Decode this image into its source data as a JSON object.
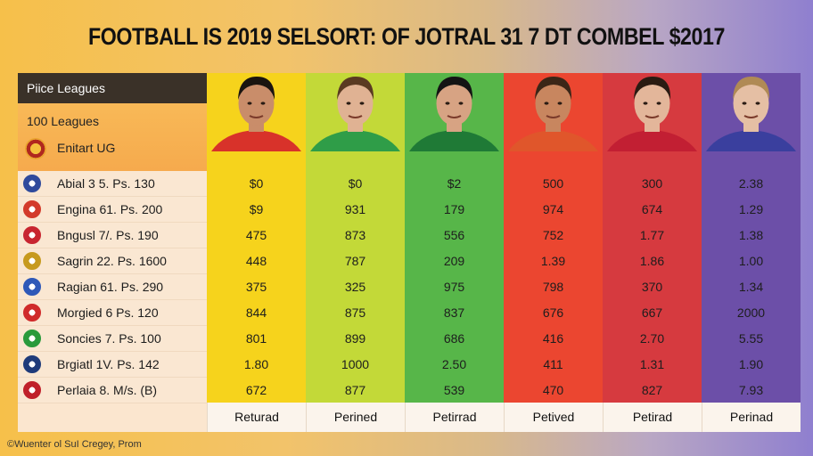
{
  "title": "FOOTBALL IS 2019 SELSORT: OF JOTRAL 31 7 DT COMBEL $2017",
  "left_panel": {
    "header": "Piice Leagues",
    "sub": "100 Leagues",
    "sub2": "Enitart UG"
  },
  "columns": [
    {
      "color": "#f6d31c",
      "footer": "Returad",
      "values": [
        "$0",
        "$9",
        "475",
        "448",
        "375",
        "844",
        "801",
        "1.80",
        "672"
      ]
    },
    {
      "color": "#c3d938",
      "footer": "Perined",
      "values": [
        "$0",
        "931",
        "873",
        "787",
        "325",
        "875",
        "899",
        "1000",
        "877"
      ]
    },
    {
      "color": "#57b649",
      "footer": "Petirrad",
      "values": [
        "$2",
        "179",
        "556",
        "209",
        "975",
        "837",
        "686",
        "2.50",
        "539"
      ]
    },
    {
      "color": "#eb4630",
      "footer": "Petived",
      "values": [
        "500",
        "974",
        "752",
        "1.39",
        "798",
        "676",
        "416",
        "411",
        "470"
      ]
    },
    {
      "color": "#d63a3f",
      "footer": "Petirad",
      "values": [
        "300",
        "674",
        "1.77",
        "1.86",
        "370",
        "667",
        "2.70",
        "1.31",
        "827"
      ]
    },
    {
      "color": "#6c4fa8",
      "footer": "Perinad",
      "values": [
        "2.38",
        "1.29",
        "1.38",
        "1.00",
        "1.34",
        "2000",
        "5.55",
        "1.90",
        "7.93"
      ]
    }
  ],
  "teams": [
    {
      "name": "Abial 3 5. Ps. 130",
      "icon": "crest-blue-icon",
      "color": "#2f4a9c"
    },
    {
      "name": "Engina 61. Ps. 200",
      "icon": "crest-multicolor-icon",
      "color": "#d33a2a"
    },
    {
      "name": "Bngusl 7/. Ps. 190",
      "icon": "crest-red-white-icon",
      "color": "#c82530"
    },
    {
      "name": "Sagrin 22. Ps. 1600",
      "icon": "crest-gold-icon",
      "color": "#c79a1e"
    },
    {
      "name": "Ragian 61. Ps. 290",
      "icon": "crest-blue-red-icon",
      "color": "#2f59b8"
    },
    {
      "name": "Morgied 6 Ps. 120",
      "icon": "crest-red-icon",
      "color": "#d02a2a"
    },
    {
      "name": "Soncies 7. Ps. 100",
      "icon": "crest-green-icon",
      "color": "#2a9a3b"
    },
    {
      "name": "Brgiatl 1V. Ps. 142",
      "icon": "crest-navy-icon",
      "color": "#1f3b7a"
    },
    {
      "name": "Perlaia 8. M/s. (B)",
      "icon": "crest-red-bar-icon",
      "color": "#c0202a"
    }
  ],
  "credit": "©Wuenter ol SuI Cregey, Prom"
}
